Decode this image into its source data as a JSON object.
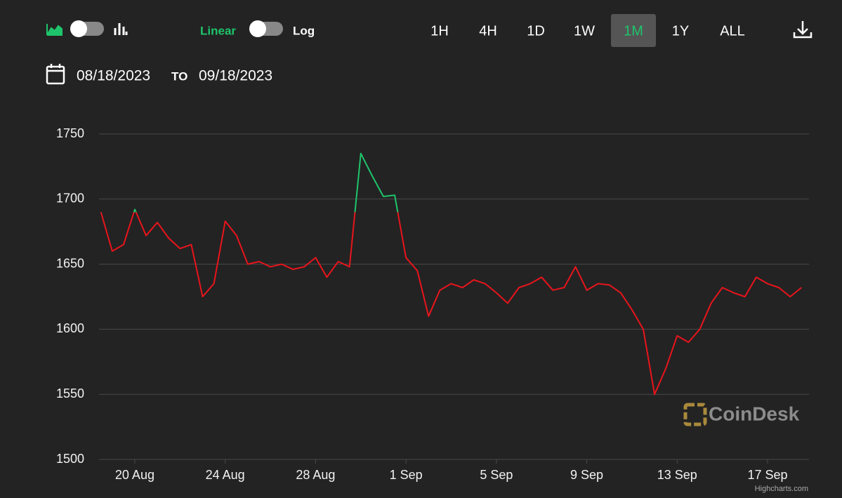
{
  "ui": {
    "linear": "Linear",
    "log": "Log",
    "ranges": [
      "1H",
      "4H",
      "1D",
      "1W",
      "1M",
      "1Y",
      "ALL"
    ],
    "active_range": 4,
    "date_from": "08/18/2023",
    "to": "TO",
    "date_to": "09/18/2023",
    "watermark": "CoinDesk",
    "credits": "Highcharts.com"
  },
  "chart_data": {
    "type": "line",
    "x": [
      "2023-08-18T12:00",
      "2023-08-19T00:00",
      "2023-08-19T12:00",
      "2023-08-20T00:00",
      "2023-08-20T12:00",
      "2023-08-21T00:00",
      "2023-08-21T12:00",
      "2023-08-22T00:00",
      "2023-08-22T12:00",
      "2023-08-23T00:00",
      "2023-08-23T12:00",
      "2023-08-24T00:00",
      "2023-08-24T12:00",
      "2023-08-25T00:00",
      "2023-08-25T12:00",
      "2023-08-26T00:00",
      "2023-08-26T12:00",
      "2023-08-27T00:00",
      "2023-08-27T12:00",
      "2023-08-28T00:00",
      "2023-08-28T12:00",
      "2023-08-29T00:00",
      "2023-08-29T12:00",
      "2023-08-30T00:00",
      "2023-08-30T12:00",
      "2023-08-31T00:00",
      "2023-08-31T12:00",
      "2023-09-01T00:00",
      "2023-09-01T12:00",
      "2023-09-02T00:00",
      "2023-09-02T12:00",
      "2023-09-03T00:00",
      "2023-09-03T12:00",
      "2023-09-04T00:00",
      "2023-09-04T12:00",
      "2023-09-05T00:00",
      "2023-09-05T12:00",
      "2023-09-06T00:00",
      "2023-09-06T12:00",
      "2023-09-07T00:00",
      "2023-09-07T12:00",
      "2023-09-08T00:00",
      "2023-09-08T12:00",
      "2023-09-09T00:00",
      "2023-09-09T12:00",
      "2023-09-10T00:00",
      "2023-09-10T12:00",
      "2023-09-11T00:00",
      "2023-09-11T12:00",
      "2023-09-12T00:00",
      "2023-09-12T12:00",
      "2023-09-13T00:00",
      "2023-09-13T12:00",
      "2023-09-14T00:00",
      "2023-09-14T12:00",
      "2023-09-15T00:00",
      "2023-09-15T12:00",
      "2023-09-16T00:00",
      "2023-09-16T12:00",
      "2023-09-17T00:00",
      "2023-09-17T12:00",
      "2023-09-18T00:00",
      "2023-09-18T12:00"
    ],
    "values": [
      1690,
      1660,
      1665,
      1692,
      1672,
      1682,
      1670,
      1662,
      1665,
      1625,
      1635,
      1683,
      1672,
      1650,
      1652,
      1648,
      1650,
      1646,
      1648,
      1655,
      1640,
      1652,
      1648,
      1735,
      1718,
      1702,
      1703,
      1655,
      1645,
      1610,
      1630,
      1635,
      1632,
      1638,
      1635,
      1628,
      1620,
      1632,
      1635,
      1640,
      1630,
      1632,
      1648,
      1630,
      1635,
      1634,
      1628,
      1615,
      1600,
      1550,
      1570,
      1595,
      1590,
      1600,
      1620,
      1632,
      1628,
      1625,
      1640,
      1635,
      1632,
      1625,
      1632
    ],
    "threshold": 1690,
    "color_above": "#1ec46b",
    "color_below": "#e8141c",
    "xlim": [
      "2023-08-18T10:00",
      "2023-09-18T20:00"
    ],
    "xticks": [
      {
        "value": "2023-08-20T00:00",
        "label": "20 Aug"
      },
      {
        "value": "2023-08-24T00:00",
        "label": "24 Aug"
      },
      {
        "value": "2023-08-28T00:00",
        "label": "28 Aug"
      },
      {
        "value": "2023-09-01T00:00",
        "label": "1 Sep"
      },
      {
        "value": "2023-09-05T00:00",
        "label": "5 Sep"
      },
      {
        "value": "2023-09-09T00:00",
        "label": "9 Sep"
      },
      {
        "value": "2023-09-13T00:00",
        "label": "13 Sep"
      },
      {
        "value": "2023-09-17T00:00",
        "label": "17 Sep"
      }
    ],
    "ylim": [
      1500,
      1750
    ],
    "yticks": [
      1500,
      1550,
      1600,
      1650,
      1700,
      1750
    ],
    "grid": true
  }
}
